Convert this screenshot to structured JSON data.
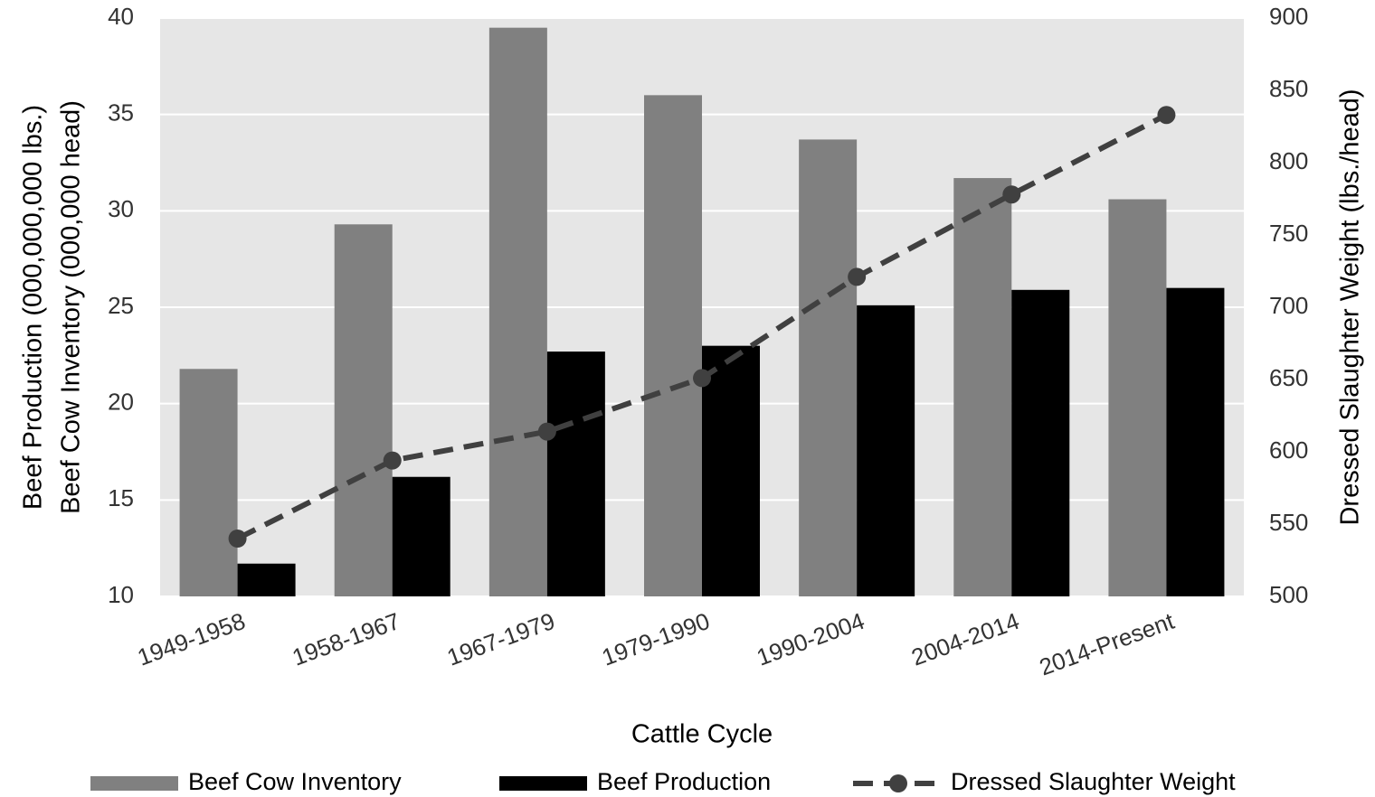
{
  "chart_data": {
    "type": "bar",
    "x_label": "Cattle Cycle",
    "y_label": [
      "Beef Production (000,000,000 lbs.)",
      "Beef Cow Inventory (000,000 head)"
    ],
    "y2_label": "Dressed Slaughter Weight (lbs./head)",
    "categories": [
      "1949-1958",
      "1958-1967",
      "1967-1979",
      "1979-1990",
      "1990-2004",
      "2004-2014",
      "2014-Present"
    ],
    "series": [
      {
        "name": "Beef Cow Inventory",
        "type": "bar",
        "color": "#808080",
        "values": [
          21.8,
          29.3,
          39.5,
          36.0,
          33.7,
          31.7,
          30.6
        ]
      },
      {
        "name": "Beef Production",
        "type": "bar",
        "color": "#000000",
        "values": [
          11.7,
          16.2,
          22.7,
          23.0,
          25.1,
          25.9,
          26.0
        ]
      },
      {
        "name": "Dressed Slaughter Weight",
        "type": "line",
        "axis": "y2",
        "color": "#404040",
        "values": [
          540,
          594,
          614,
          651,
          721,
          778,
          833
        ]
      }
    ],
    "ylim": [
      10,
      40
    ],
    "yticks": [
      10,
      15,
      20,
      25,
      30,
      35,
      40
    ],
    "y2lim": [
      500,
      900
    ],
    "y2ticks": [
      500,
      550,
      600,
      650,
      700,
      750,
      800,
      850,
      900
    ],
    "grid": true,
    "legend": "bottom"
  }
}
